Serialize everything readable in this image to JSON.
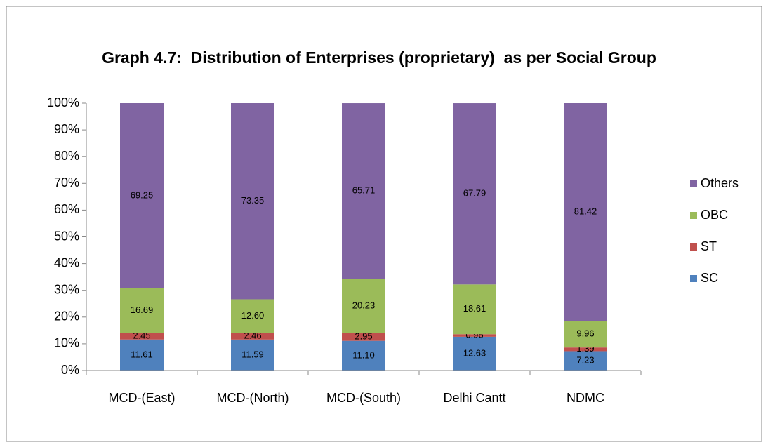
{
  "chart_data": {
    "type": "stacked_bar",
    "title": "Graph 4.7:  Distribution of Enterprises (proprietary)  as per Social Group",
    "categories": [
      "MCD-(East)",
      "MCD-(North)",
      "MCD-(South)",
      "Delhi Cantt",
      "NDMC"
    ],
    "series": [
      {
        "name": "SC",
        "color": "#4f81bd",
        "values": [
          11.61,
          11.59,
          11.1,
          12.63,
          7.23
        ],
        "value_labels": [
          "11.61",
          "11.59",
          "11.10",
          "12.63",
          "7.23"
        ]
      },
      {
        "name": "ST",
        "color": "#c0504d",
        "values": [
          2.45,
          2.46,
          2.95,
          0.96,
          1.39
        ],
        "value_labels": [
          "2.45",
          "2.46",
          "2.95",
          "0.96",
          "1.39"
        ]
      },
      {
        "name": "OBC",
        "color": "#9bbb59",
        "values": [
          16.69,
          12.6,
          20.23,
          18.61,
          9.96
        ],
        "value_labels": [
          "16.69",
          "12.60",
          "20.23",
          "18.61",
          "9.96"
        ]
      },
      {
        "name": "Others",
        "color": "#8064a2",
        "values": [
          69.25,
          73.35,
          65.71,
          67.79,
          81.42
        ],
        "value_labels": [
          "69.25",
          "73.35",
          "65.71",
          "67.79",
          "81.42"
        ]
      }
    ],
    "ylim": [
      0,
      100
    ],
    "yticks": [
      {
        "value": 0,
        "label": "0%"
      },
      {
        "value": 10,
        "label": "10%"
      },
      {
        "value": 20,
        "label": "20%"
      },
      {
        "value": 30,
        "label": "30%"
      },
      {
        "value": 40,
        "label": "40%"
      },
      {
        "value": 50,
        "label": "50%"
      },
      {
        "value": 60,
        "label": "60%"
      },
      {
        "value": 70,
        "label": "70%"
      },
      {
        "value": 80,
        "label": "80%"
      },
      {
        "value": 90,
        "label": "90%"
      },
      {
        "value": 100,
        "label": "100%"
      }
    ],
    "grid": false,
    "legend": "right"
  }
}
